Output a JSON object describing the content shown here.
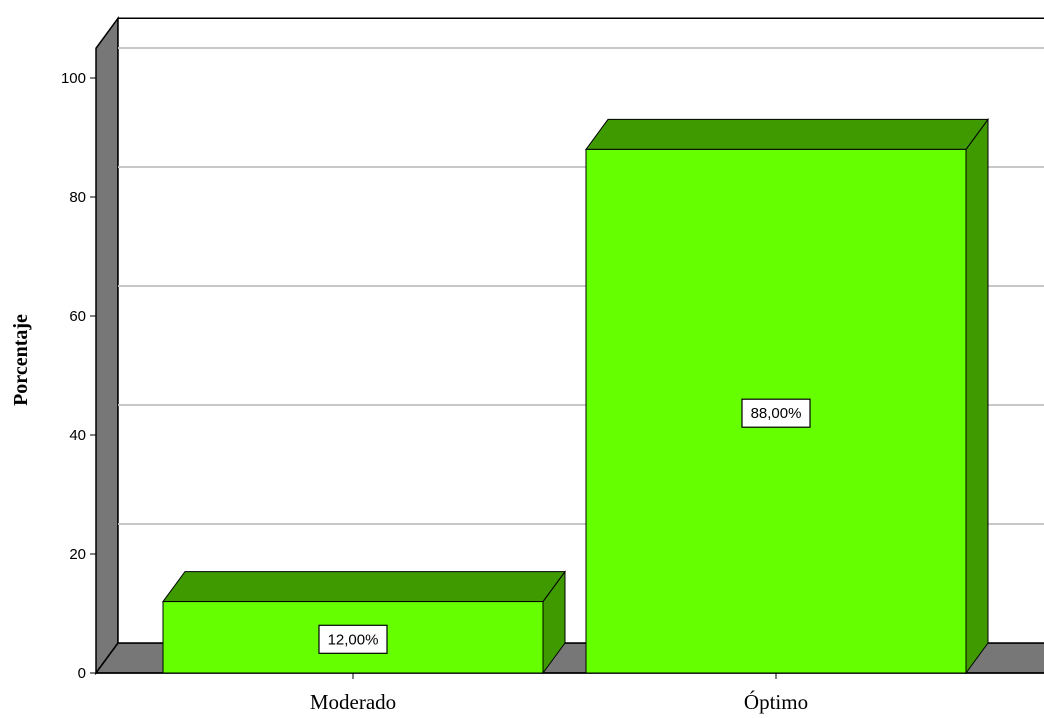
{
  "chart_data": {
    "type": "bar",
    "categories": [
      "Moderado",
      "Óptimo"
    ],
    "values": [
      12,
      88
    ],
    "data_labels": [
      "12,00%",
      "88,00%"
    ],
    "ylabel": "Porcentaje",
    "xlabel": "",
    "yticks": [
      "0",
      "20",
      "40",
      "60",
      "80",
      "100"
    ],
    "ylim": [
      0,
      105
    ],
    "grid": true,
    "style": "3d",
    "colors": {
      "bar_front": "#66ff00",
      "bar_top": "#3f9a00",
      "bar_side": "#3f9a00",
      "wall": "#777777",
      "gridline": "#c8c8c8"
    }
  }
}
